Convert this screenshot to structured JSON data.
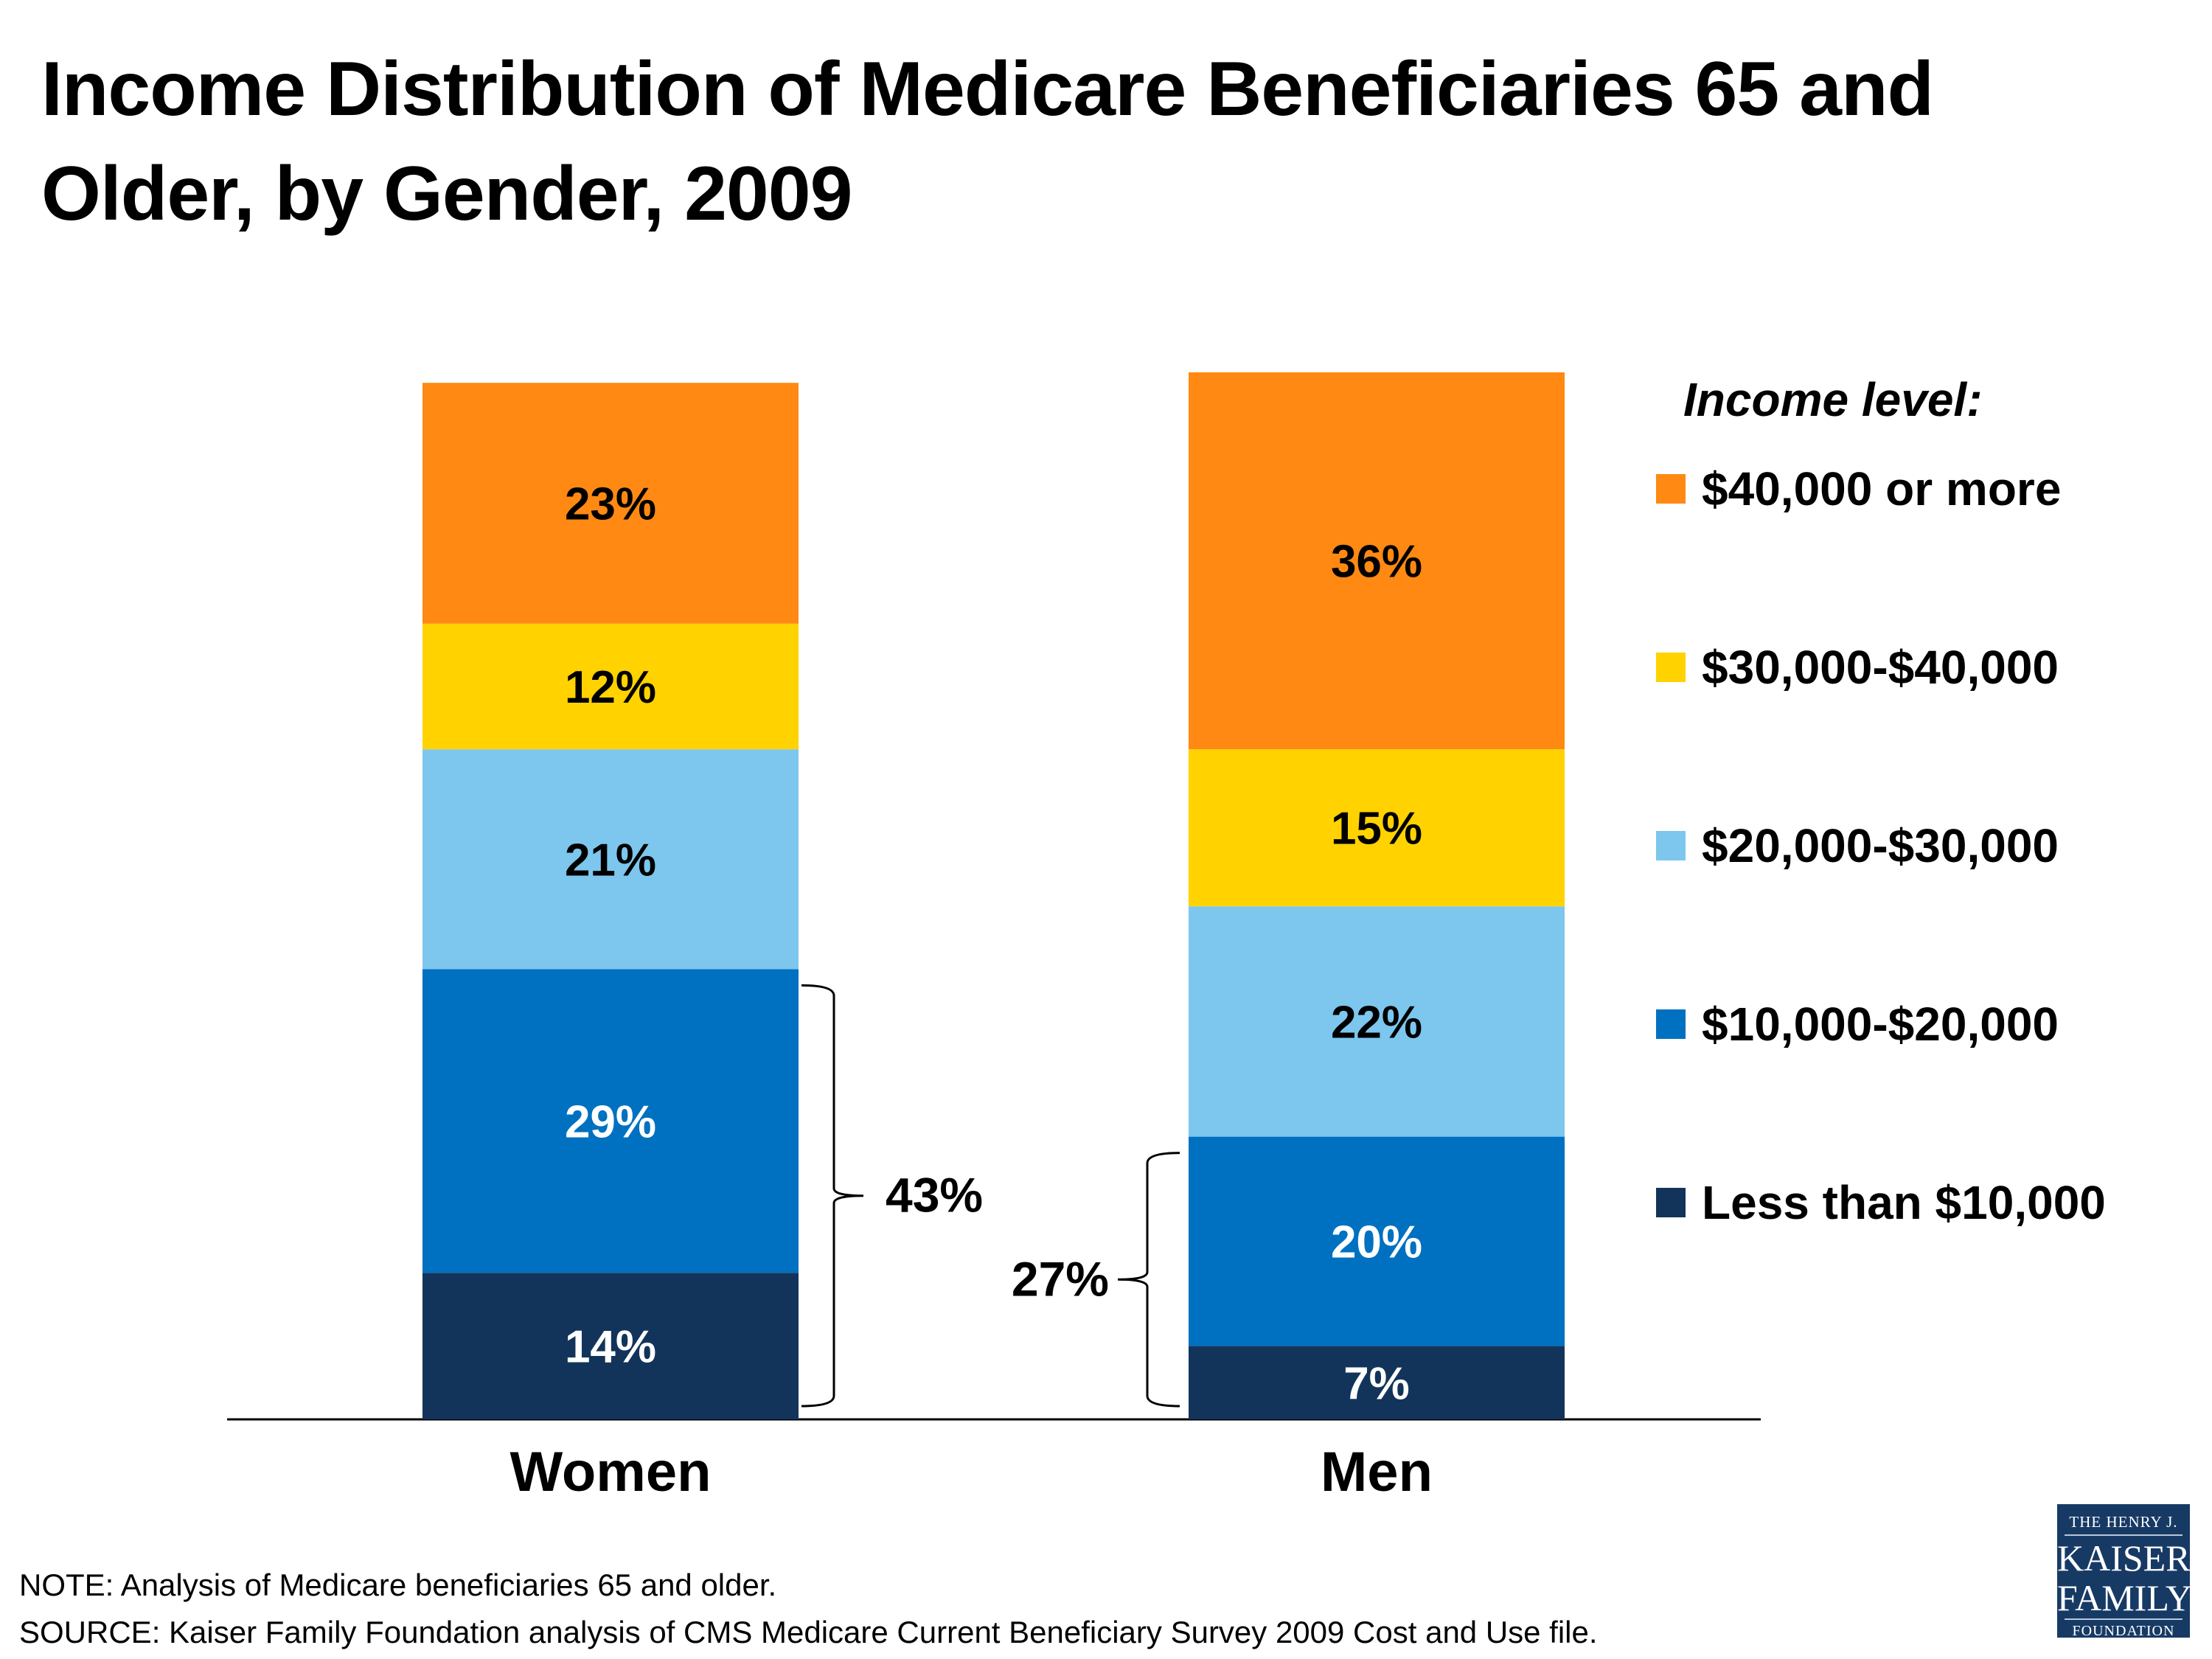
{
  "chart_data": {
    "type": "bar",
    "stacked": true,
    "title": "Income Distribution of Medicare Beneficiaries 65 and Older,  by Gender, 2009",
    "categories": [
      "Women",
      "Men"
    ],
    "legend_title": "Income level:",
    "legend_placement": "right",
    "ylim": [
      0,
      100
    ],
    "grid": false,
    "series": [
      {
        "name": "Less than $10,000",
        "color": "#13345A",
        "label_color": "#FFFFFF",
        "values": [
          14,
          7
        ]
      },
      {
        "name": "$10,000-$20,000",
        "color": "#0071C1",
        "label_color": "#FFFFFF",
        "values": [
          29,
          20
        ]
      },
      {
        "name": "$20,000-$30,000",
        "color": "#7DC6EE",
        "label_color": "#000000",
        "values": [
          21,
          22
        ]
      },
      {
        "name": "$30,000-$40,000",
        "color": "#FFD200",
        "label_color": "#000000",
        "values": [
          12,
          15
        ]
      },
      {
        "name": "$40,000 or more",
        "color": "#FF8912",
        "label_color": "#000000",
        "values": [
          23,
          36
        ]
      }
    ],
    "annotations": [
      {
        "category": "Women",
        "text": "43%",
        "spans_series": [
          "Less than $10,000",
          "$10,000-$20,000"
        ]
      },
      {
        "category": "Men",
        "text": "27%",
        "spans_series": [
          "Less than $10,000",
          "$10,000-$20,000"
        ]
      }
    ]
  },
  "title_line1": "Income Distribution of Medicare Beneficiaries 65 and",
  "title_line2": "Older,  by Gender, 2009",
  "note": "NOTE: Analysis of Medicare beneficiaries 65 and older.",
  "source": "SOURCE: Kaiser Family Foundation analysis of CMS Medicare Current Beneficiary Survey 2009 Cost and Use file.",
  "logo": {
    "line1": "THE HENRY J.",
    "line2": "KAISER",
    "line3": "FAMILY",
    "line4": "FOUNDATION"
  }
}
